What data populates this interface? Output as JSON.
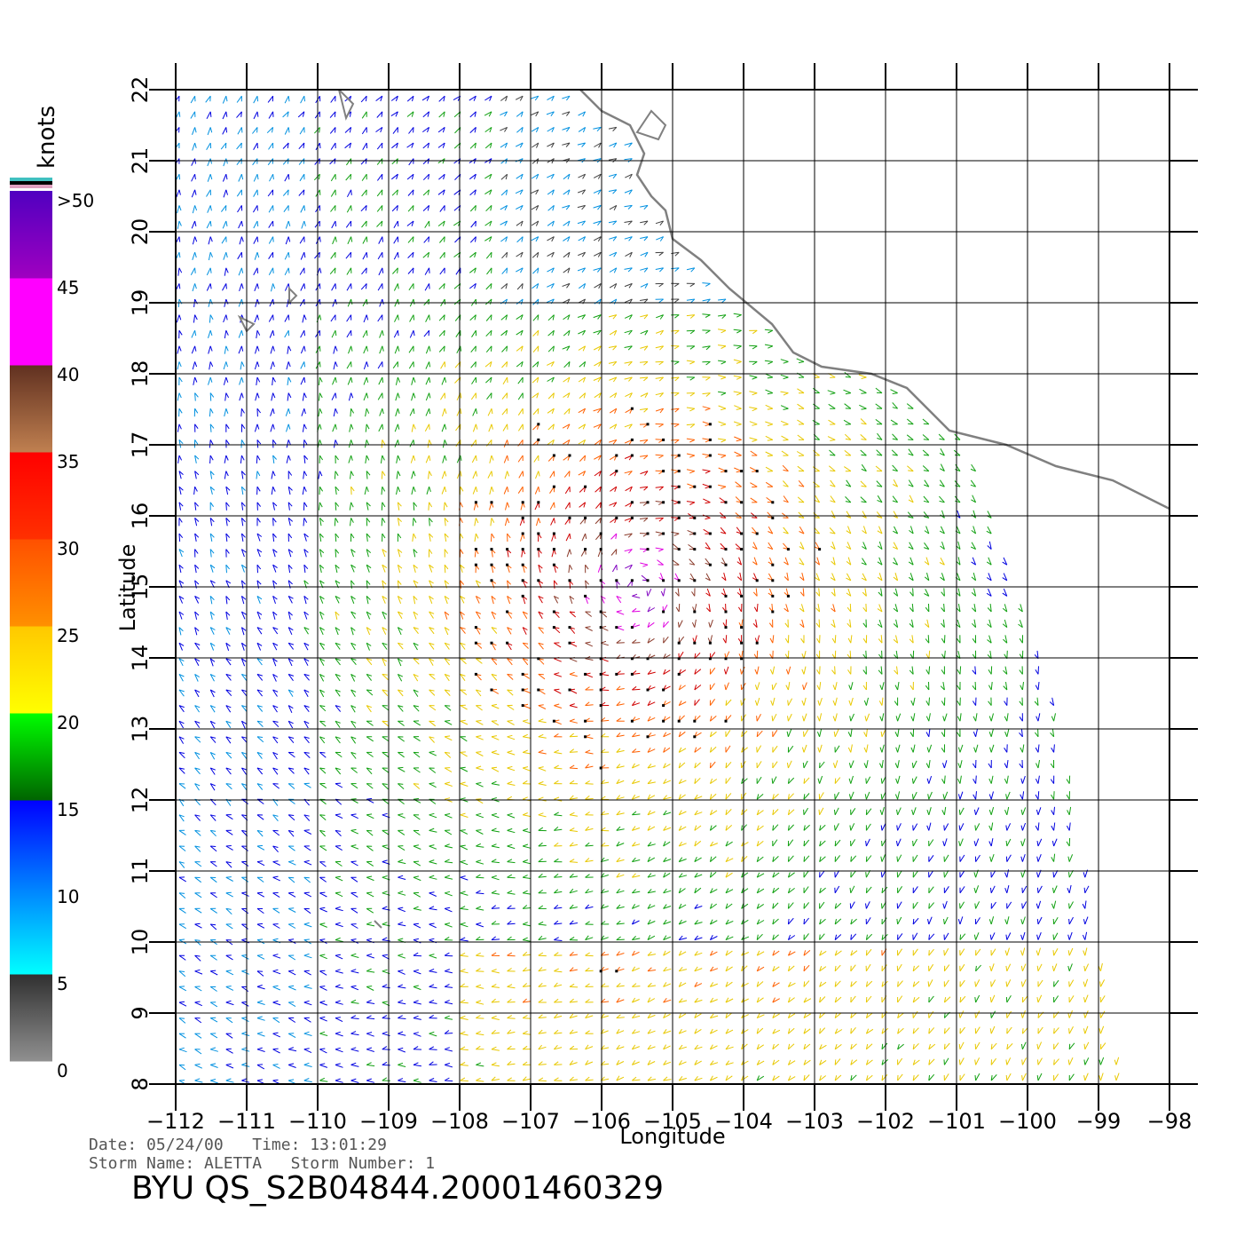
{
  "map": {
    "longitudes": [
      -112,
      -111,
      -110,
      -109,
      -108,
      -107,
      -106,
      -105,
      -104,
      -103,
      -102,
      -101,
      -100,
      -99,
      -98
    ],
    "latitudes": [
      8,
      9,
      10,
      11,
      12,
      13,
      14,
      15,
      16,
      17,
      18,
      19,
      20,
      21,
      22
    ],
    "lon_tick_labels": [
      "−112",
      "−111",
      "−110",
      "−109",
      "−108",
      "−107",
      "−106",
      "−105",
      "−104",
      "−103",
      "−102",
      "−101",
      "−100",
      "−99",
      "−98"
    ],
    "lat_tick_labels": [
      "8",
      "9",
      "10",
      "11",
      "12",
      "13",
      "14",
      "15",
      "16",
      "17",
      "18",
      "19",
      "20",
      "21",
      "22"
    ],
    "xlabel": "Longitude",
    "ylabel": "Latitude",
    "lon_range": [
      -112,
      -98
    ],
    "lat_range": [
      8,
      22
    ],
    "grid": true,
    "coastline_color": "#808080",
    "coastline": [
      [
        -106.3,
        22.0
      ],
      [
        -106.0,
        21.7
      ],
      [
        -105.6,
        21.5
      ],
      [
        -105.4,
        21.1
      ],
      [
        -105.5,
        20.8
      ],
      [
        -105.3,
        20.5
      ],
      [
        -105.1,
        20.3
      ],
      [
        -105.0,
        19.9
      ],
      [
        -104.6,
        19.6
      ],
      [
        -104.2,
        19.2
      ],
      [
        -103.6,
        18.7
      ],
      [
        -103.3,
        18.3
      ],
      [
        -102.9,
        18.1
      ],
      [
        -102.2,
        18.0
      ],
      [
        -101.7,
        17.8
      ],
      [
        -101.1,
        17.2
      ],
      [
        -100.3,
        17.0
      ],
      [
        -99.6,
        16.7
      ],
      [
        -98.8,
        16.5
      ],
      [
        -98.0,
        16.1
      ]
    ],
    "islands": [
      [
        [
          -109.7,
          22.0
        ],
        [
          -109.5,
          21.8
        ],
        [
          -109.6,
          21.6
        ]
      ],
      [
        [
          -105.3,
          21.7
        ],
        [
          -105.1,
          21.5
        ],
        [
          -105.2,
          21.3
        ],
        [
          -105.5,
          21.4
        ]
      ],
      [
        [
          -110.4,
          19.2
        ],
        [
          -110.3,
          19.1
        ],
        [
          -110.4,
          19.0
        ]
      ],
      [
        [
          -111.1,
          18.8
        ],
        [
          -110.9,
          18.7
        ],
        [
          -111.0,
          18.6
        ]
      ],
      [
        [
          -109.2,
          10.3
        ],
        [
          -109.1,
          10.2
        ]
      ]
    ],
    "wind_field": {
      "storm_center": [
        -105.5,
        15.0
      ],
      "swath_east_edge": [
        [
          8.0,
          -98.7
        ],
        [
          13.0,
          -99.5
        ],
        [
          17.0,
          -100.8
        ],
        [
          22.0,
          -100.8
        ]
      ],
      "cell_spacing_deg": 0.22,
      "flag_marker_threshold_knots": 20
    }
  },
  "legend": {
    "unit": "knots",
    "labels": [
      ">50",
      "45",
      "40",
      "35",
      "30",
      "25",
      "20",
      "15",
      "10",
      "5",
      "0"
    ],
    "stops": [
      {
        "min": 0,
        "color_top": "#303030",
        "color_bottom": "#909090"
      },
      {
        "min": 5,
        "color_top": "#0080ff",
        "color_bottom": "#00ffff"
      },
      {
        "min": 10,
        "color_top": "#0000ff",
        "color_bottom": "#0080ff"
      },
      {
        "min": 15,
        "color_top": "#00ff00",
        "color_bottom": "#006400"
      },
      {
        "min": 20,
        "color_top": "#ffc800",
        "color_bottom": "#ffff00"
      },
      {
        "min": 25,
        "color_top": "#ff5000",
        "color_bottom": "#ff9000"
      },
      {
        "min": 30,
        "color_top": "#ff0000",
        "color_bottom": "#ff3000"
      },
      {
        "min": 35,
        "color_top": "#603020",
        "color_bottom": "#c08050"
      },
      {
        "min": 40,
        "color_top": "#ff00ff",
        "color_bottom": "#ff00ff"
      },
      {
        "min": 45,
        "color_top": "#5000c0",
        "color_bottom": "#a000c0"
      }
    ],
    "top_stripes": [
      "#40c0c0",
      "#000000",
      "#e0a0c0"
    ]
  },
  "info": {
    "line1": "Date: 05/24/00   Time: 13:01:29",
    "line2": "Storm Name: ALETTA   Storm Number: 1",
    "product": "BYU QS_S2B04844.20001460329"
  }
}
